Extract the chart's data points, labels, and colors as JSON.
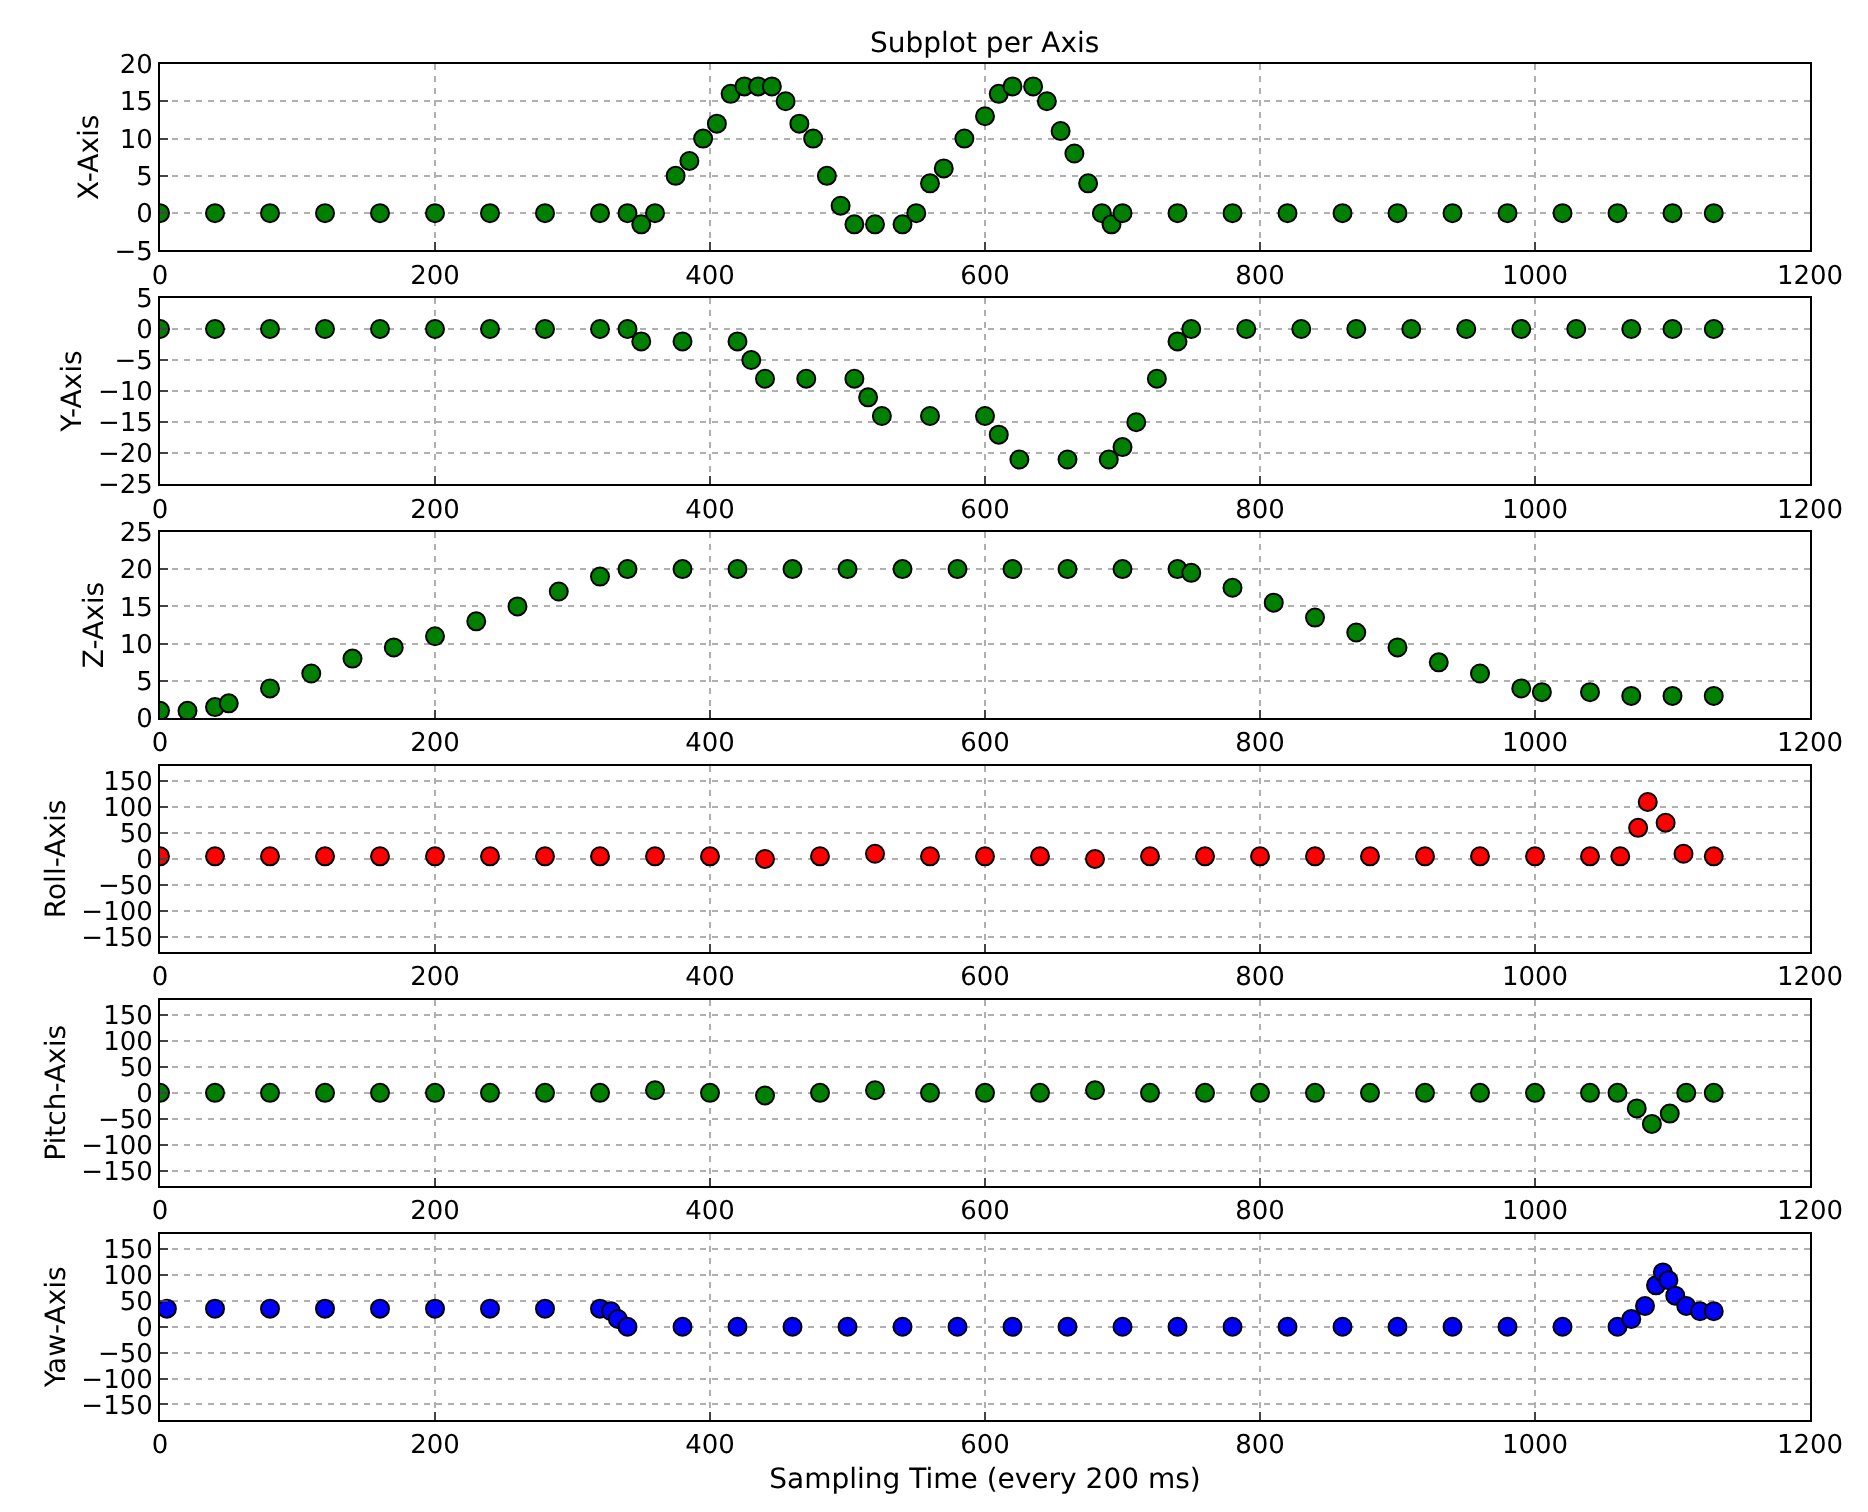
{
  "chart_data": [
    {
      "type": "scatter",
      "title": "Subplot per Axis",
      "ylabel": "X-Axis",
      "color": "#008000",
      "marker": "circle",
      "grid": true,
      "xlim": [
        0,
        1200
      ],
      "xticks": [
        0,
        200,
        400,
        600,
        800,
        1000,
        1200
      ],
      "ylim": [
        -5,
        20
      ],
      "yticks": [
        -5,
        0,
        5,
        10,
        15,
        20
      ],
      "x": [
        0,
        40,
        80,
        120,
        160,
        200,
        240,
        280,
        320,
        340,
        350,
        360,
        375,
        385,
        395,
        405,
        415,
        425,
        435,
        445,
        455,
        465,
        475,
        485,
        495,
        505,
        520,
        540,
        550,
        560,
        570,
        585,
        600,
        610,
        620,
        635,
        645,
        655,
        665,
        675,
        685,
        692,
        700,
        740,
        780,
        820,
        860,
        900,
        940,
        980,
        1020,
        1060,
        1100,
        1130
      ],
      "values": [
        0,
        0,
        0,
        0,
        0,
        0,
        0,
        0,
        0,
        0,
        -1.5,
        0,
        5,
        7,
        10,
        12,
        16,
        17,
        17,
        17,
        15,
        12,
        10,
        5,
        1,
        -1.5,
        -1.5,
        -1.5,
        0,
        4,
        6,
        10,
        13,
        16,
        17,
        17,
        15,
        11,
        8,
        4,
        0,
        -1.5,
        0,
        0,
        0,
        0,
        0,
        0,
        0,
        0,
        0,
        0,
        0,
        0
      ]
    },
    {
      "type": "scatter",
      "ylabel": "Y-Axis",
      "color": "#008000",
      "marker": "circle",
      "grid": true,
      "xlim": [
        0,
        1200
      ],
      "xticks": [
        0,
        200,
        400,
        600,
        800,
        1000,
        1200
      ],
      "ylim": [
        -25,
        5
      ],
      "yticks": [
        -25,
        -20,
        -15,
        -10,
        -5,
        0,
        5
      ],
      "x": [
        0,
        40,
        80,
        120,
        160,
        200,
        240,
        280,
        320,
        340,
        350,
        380,
        420,
        430,
        440,
        470,
        505,
        515,
        525,
        560,
        600,
        610,
        625,
        660,
        690,
        700,
        710,
        725,
        740,
        750,
        790,
        830,
        870,
        910,
        950,
        990,
        1030,
        1070,
        1100,
        1130
      ],
      "values": [
        0,
        0,
        0,
        0,
        0,
        0,
        0,
        0,
        0,
        0,
        -2,
        -2,
        -2,
        -5,
        -8,
        -8,
        -8,
        -11,
        -14,
        -14,
        -14,
        -17,
        -21,
        -21,
        -21,
        -19,
        -15,
        -8,
        -2,
        0,
        0,
        0,
        0,
        0,
        0,
        0,
        0,
        0,
        0,
        0
      ]
    },
    {
      "type": "scatter",
      "ylabel": "Z-Axis",
      "color": "#008000",
      "marker": "circle",
      "grid": true,
      "xlim": [
        0,
        1200
      ],
      "xticks": [
        0,
        200,
        400,
        600,
        800,
        1000,
        1200
      ],
      "ylim": [
        0,
        25
      ],
      "yticks": [
        0,
        5,
        10,
        15,
        20,
        25
      ],
      "x": [
        0,
        20,
        40,
        50,
        80,
        110,
        140,
        170,
        200,
        230,
        260,
        290,
        320,
        340,
        380,
        420,
        460,
        500,
        540,
        580,
        620,
        660,
        700,
        740,
        750,
        780,
        810,
        840,
        870,
        900,
        930,
        960,
        990,
        1005,
        1040,
        1070,
        1100,
        1130
      ],
      "values": [
        1,
        1,
        1.5,
        2,
        4,
        6,
        8,
        9.5,
        11,
        13,
        15,
        17,
        19,
        20,
        20,
        20,
        20,
        20,
        20,
        20,
        20,
        20,
        20,
        20,
        19.5,
        17.5,
        15.5,
        13.5,
        11.5,
        9.5,
        7.5,
        6,
        4,
        3.5,
        3.5,
        3,
        3,
        3
      ]
    },
    {
      "type": "scatter",
      "ylabel": "Roll-Axis",
      "color": "#ff0000",
      "marker": "circle",
      "grid": true,
      "xlim": [
        0,
        1200
      ],
      "xticks": [
        0,
        200,
        400,
        600,
        800,
        1000,
        1200
      ],
      "ylim": [
        -180,
        180
      ],
      "yticks": [
        -150,
        -100,
        -50,
        0,
        50,
        100,
        150
      ],
      "x": [
        0,
        40,
        80,
        120,
        160,
        200,
        240,
        280,
        320,
        360,
        400,
        440,
        480,
        520,
        560,
        600,
        640,
        680,
        720,
        760,
        800,
        840,
        880,
        920,
        960,
        1000,
        1040,
        1062,
        1075,
        1082,
        1095,
        1108,
        1130
      ],
      "values": [
        5,
        5,
        5,
        5,
        5,
        5,
        5,
        5,
        5,
        5,
        5,
        0,
        5,
        10,
        5,
        5,
        5,
        0,
        5,
        5,
        5,
        5,
        5,
        5,
        5,
        5,
        5,
        5,
        60,
        110,
        70,
        10,
        5
      ]
    },
    {
      "type": "scatter",
      "ylabel": "Pitch-Axis",
      "color": "#008000",
      "marker": "circle",
      "grid": true,
      "xlim": [
        0,
        1200
      ],
      "xticks": [
        0,
        200,
        400,
        600,
        800,
        1000,
        1200
      ],
      "ylim": [
        -180,
        180
      ],
      "yticks": [
        -150,
        -100,
        -50,
        0,
        50,
        100,
        150
      ],
      "x": [
        0,
        40,
        80,
        120,
        160,
        200,
        240,
        280,
        320,
        360,
        400,
        440,
        480,
        520,
        560,
        600,
        640,
        680,
        720,
        760,
        800,
        840,
        880,
        920,
        960,
        1000,
        1040,
        1060,
        1074,
        1085,
        1098,
        1110,
        1130
      ],
      "values": [
        0,
        0,
        0,
        0,
        0,
        0,
        0,
        0,
        0,
        5,
        0,
        -5,
        0,
        5,
        0,
        0,
        0,
        5,
        0,
        0,
        0,
        0,
        0,
        0,
        0,
        0,
        0,
        0,
        -30,
        -60,
        -40,
        0,
        0
      ]
    },
    {
      "type": "scatter",
      "ylabel": "Yaw-Axis",
      "xlabel": "Sampling Time (every 200 ms)",
      "color": "#0000ff",
      "marker": "circle",
      "grid": true,
      "xlim": [
        0,
        1200
      ],
      "xticks": [
        0,
        200,
        400,
        600,
        800,
        1000,
        1200
      ],
      "ylim": [
        -180,
        180
      ],
      "yticks": [
        -150,
        -100,
        -50,
        0,
        50,
        100,
        150
      ],
      "x": [
        5,
        40,
        80,
        120,
        160,
        200,
        240,
        280,
        320,
        328,
        333,
        340,
        380,
        420,
        460,
        500,
        540,
        580,
        620,
        660,
        700,
        740,
        780,
        820,
        860,
        900,
        940,
        980,
        1020,
        1060,
        1070,
        1080,
        1088,
        1093,
        1097,
        1102,
        1110,
        1120,
        1130
      ],
      "values": [
        35,
        35,
        35,
        35,
        35,
        35,
        35,
        35,
        35,
        30,
        15,
        0,
        0,
        0,
        0,
        0,
        0,
        0,
        0,
        0,
        0,
        0,
        0,
        0,
        0,
        0,
        0,
        0,
        0,
        0,
        15,
        40,
        80,
        105,
        90,
        60,
        40,
        30,
        30
      ]
    }
  ]
}
